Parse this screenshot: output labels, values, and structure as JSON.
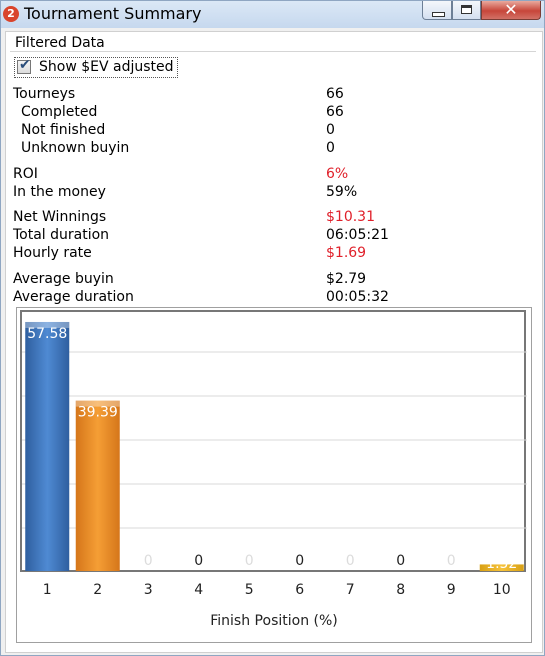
{
  "window": {
    "title": "Tournament Summary",
    "app_icon_text": "2",
    "controls": {
      "minimize": "minimize",
      "maximize": "maximize",
      "close": "✕"
    }
  },
  "filter": {
    "group_label": "Filtered Data",
    "checkbox_label": "Show $EV adjusted",
    "checked": true
  },
  "stats": [
    {
      "label": "Tourneys",
      "value": "66",
      "indent": false,
      "red": false
    },
    {
      "label": "Completed",
      "value": "66",
      "indent": true,
      "red": false
    },
    {
      "label": "Not finished",
      "value": "0",
      "indent": true,
      "red": false
    },
    {
      "label": "Unknown buyin",
      "value": "0",
      "indent": true,
      "red": false
    },
    {
      "label": "ROI",
      "value": "6%",
      "indent": false,
      "red": true
    },
    {
      "label": "In the money",
      "value": "59%",
      "indent": false,
      "red": false
    },
    {
      "label": "Net Winnings",
      "value": "$10.31",
      "indent": false,
      "red": true
    },
    {
      "label": "Total duration",
      "value": "06:05:21",
      "indent": false,
      "red": false
    },
    {
      "label": "Hourly rate",
      "value": "$1.69",
      "indent": false,
      "red": true
    },
    {
      "label": "Average buyin",
      "value": "$2.79",
      "indent": false,
      "red": false
    },
    {
      "label": "Average duration",
      "value": "00:05:32",
      "indent": false,
      "red": false
    }
  ],
  "chart_data": {
    "type": "bar",
    "categories": [
      "1",
      "2",
      "3",
      "4",
      "5",
      "6",
      "7",
      "8",
      "9",
      "10"
    ],
    "values": [
      57.58,
      39.39,
      0,
      0,
      0,
      0,
      0,
      0,
      0,
      1.52
    ],
    "value_labels": [
      "57.58",
      "39.39",
      "0",
      "0",
      "0",
      "0",
      "0",
      "0",
      "0",
      "1.52"
    ],
    "xlabel": "Finish Position (%)",
    "ylabel": "",
    "ylim": [
      0,
      60
    ],
    "grid": true,
    "colors": {
      "1": "#3d75c0",
      "2": "#ef8f22",
      "10": "#f0b51e"
    }
  }
}
